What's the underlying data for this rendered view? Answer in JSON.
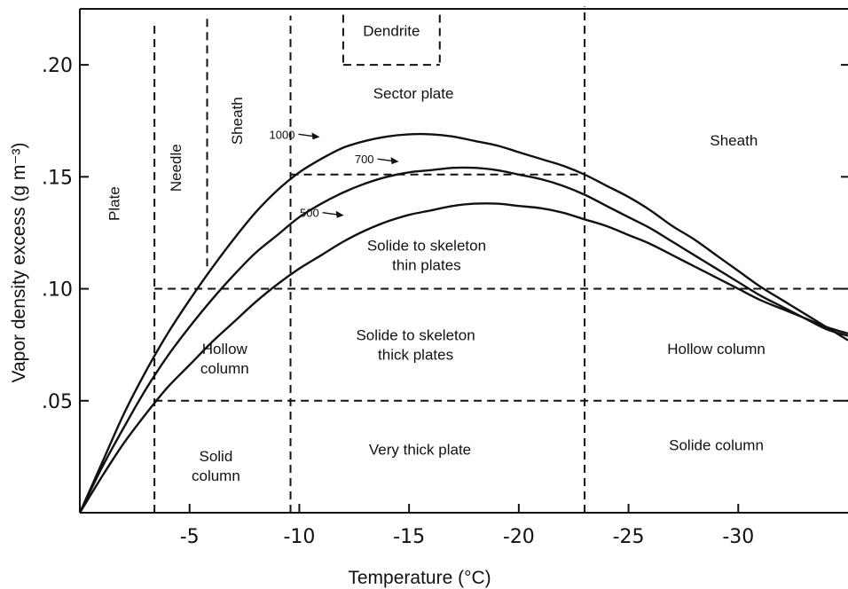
{
  "chart_data": {
    "type": "line",
    "title": "",
    "xlabel": "Temperature (°C)",
    "ylabel": "Vapor density excess (g m⁻³)",
    "xlim": [
      0,
      -35
    ],
    "ylim": [
      0,
      0.225
    ],
    "x_ticks": [
      {
        "value": -5,
        "label": "-5"
      },
      {
        "value": -10,
        "label": "-10"
      },
      {
        "value": -15,
        "label": "-15"
      },
      {
        "value": -20,
        "label": "-20"
      },
      {
        "value": -25,
        "label": "-25"
      },
      {
        "value": -30,
        "label": "-30"
      }
    ],
    "y_ticks": [
      {
        "value": 0.05,
        "label": ".05"
      },
      {
        "value": 0.1,
        "label": ".10"
      },
      {
        "value": 0.15,
        "label": ".15"
      },
      {
        "value": 0.2,
        "label": ".20"
      }
    ],
    "series": [
      {
        "name": "1000",
        "label_at": [
          -9.8,
          0.169
        ],
        "points": [
          [
            0,
            0
          ],
          [
            -1,
            0.022
          ],
          [
            -2,
            0.044
          ],
          [
            -3,
            0.063
          ],
          [
            -4,
            0.08
          ],
          [
            -5,
            0.095
          ],
          [
            -6,
            0.109
          ],
          [
            -7,
            0.122
          ],
          [
            -8,
            0.134
          ],
          [
            -9,
            0.144
          ],
          [
            -10,
            0.152
          ],
          [
            -11,
            0.158
          ],
          [
            -12,
            0.163
          ],
          [
            -13,
            0.166
          ],
          [
            -14,
            0.168
          ],
          [
            -15,
            0.169
          ],
          [
            -16,
            0.169
          ],
          [
            -17,
            0.168
          ],
          [
            -18,
            0.166
          ],
          [
            -19,
            0.164
          ],
          [
            -20,
            0.161
          ],
          [
            -21,
            0.158
          ],
          [
            -22,
            0.155
          ],
          [
            -23,
            0.151
          ],
          [
            -24,
            0.146
          ],
          [
            -25,
            0.141
          ],
          [
            -26,
            0.135
          ],
          [
            -27,
            0.128
          ],
          [
            -28,
            0.122
          ],
          [
            -29,
            0.115
          ],
          [
            -30,
            0.108
          ],
          [
            -31,
            0.101
          ],
          [
            -32,
            0.095
          ],
          [
            -33,
            0.089
          ],
          [
            -34,
            0.083
          ],
          [
            -35,
            0.077
          ]
        ]
      },
      {
        "name": "700",
        "label_at": [
          -13.4,
          0.158
        ],
        "points": [
          [
            0,
            0
          ],
          [
            -1,
            0.02
          ],
          [
            -2,
            0.038
          ],
          [
            -3,
            0.055
          ],
          [
            -4,
            0.07
          ],
          [
            -5,
            0.083
          ],
          [
            -6,
            0.095
          ],
          [
            -7,
            0.106
          ],
          [
            -8,
            0.116
          ],
          [
            -9,
            0.124
          ],
          [
            -10,
            0.132
          ],
          [
            -11,
            0.138
          ],
          [
            -12,
            0.143
          ],
          [
            -13,
            0.147
          ],
          [
            -14,
            0.15
          ],
          [
            -15,
            0.152
          ],
          [
            -16,
            0.153
          ],
          [
            -17,
            0.154
          ],
          [
            -18,
            0.154
          ],
          [
            -19,
            0.153
          ],
          [
            -20,
            0.151
          ],
          [
            -21,
            0.149
          ],
          [
            -22,
            0.146
          ],
          [
            -23,
            0.142
          ],
          [
            -24,
            0.137
          ],
          [
            -25,
            0.132
          ],
          [
            -26,
            0.127
          ],
          [
            -27,
            0.121
          ],
          [
            -28,
            0.115
          ],
          [
            -29,
            0.109
          ],
          [
            -30,
            0.103
          ],
          [
            -31,
            0.097
          ],
          [
            -32,
            0.092
          ],
          [
            -33,
            0.087
          ],
          [
            -34,
            0.082
          ],
          [
            -35,
            0.079
          ]
        ]
      },
      {
        "name": "500",
        "label_at": [
          -10.9,
          0.134
        ],
        "points": [
          [
            0,
            0
          ],
          [
            -1,
            0.016
          ],
          [
            -2,
            0.031
          ],
          [
            -3,
            0.044
          ],
          [
            -4,
            0.056
          ],
          [
            -5,
            0.066
          ],
          [
            -6,
            0.076
          ],
          [
            -7,
            0.085
          ],
          [
            -8,
            0.094
          ],
          [
            -9,
            0.102
          ],
          [
            -10,
            0.109
          ],
          [
            -11,
            0.115
          ],
          [
            -12,
            0.121
          ],
          [
            -13,
            0.126
          ],
          [
            -14,
            0.13
          ],
          [
            -15,
            0.133
          ],
          [
            -16,
            0.135
          ],
          [
            -17,
            0.137
          ],
          [
            -18,
            0.138
          ],
          [
            -19,
            0.138
          ],
          [
            -20,
            0.137
          ],
          [
            -21,
            0.136
          ],
          [
            -22,
            0.134
          ],
          [
            -23,
            0.131
          ],
          [
            -24,
            0.128
          ],
          [
            -25,
            0.124
          ],
          [
            -26,
            0.12
          ],
          [
            -27,
            0.115
          ],
          [
            -28,
            0.11
          ],
          [
            -29,
            0.105
          ],
          [
            -30,
            0.1
          ],
          [
            -31,
            0.095
          ],
          [
            -32,
            0.091
          ],
          [
            -33,
            0.087
          ],
          [
            -34,
            0.083
          ],
          [
            -35,
            0.08
          ]
        ]
      }
    ],
    "boundaries": {
      "vertical": [
        {
          "x": -3.4,
          "y_range": [
            0,
            0.219
          ]
        },
        {
          "x": -5.8,
          "y_range": [
            0.11,
            0.222
          ]
        },
        {
          "x": -9.6,
          "y_range": [
            0,
            0.222
          ]
        },
        {
          "x": -23,
          "y_range": [
            0,
            0.226
          ]
        },
        {
          "x": -12,
          "y_range": [
            0.201,
            0.225
          ]
        },
        {
          "x": -16.4,
          "y_range": [
            0.201,
            0.225
          ]
        }
      ],
      "horizontal": [
        {
          "y": 0.2,
          "x_range": [
            -12,
            -16.4
          ]
        },
        {
          "y": 0.151,
          "x_range": [
            -9.6,
            -23
          ]
        },
        {
          "y": 0.1,
          "x_range": [
            -3.4,
            -35
          ]
        },
        {
          "y": 0.05,
          "x_range": [
            -3.4,
            -35
          ]
        }
      ]
    },
    "regions": [
      {
        "text": [
          "Plate"
        ],
        "at": [
          -1.8,
          0.138
        ],
        "rotate": -90
      },
      {
        "text": [
          "Needle"
        ],
        "at": [
          -4.6,
          0.154
        ],
        "rotate": -90
      },
      {
        "text": [
          "Sheath"
        ],
        "at": [
          -7.4,
          0.175
        ],
        "rotate": -90
      },
      {
        "text": [
          "Dendrite"
        ],
        "at": [
          -14.2,
          0.213
        ],
        "rotate": 0
      },
      {
        "text": [
          "Sector plate"
        ],
        "at": [
          -15.2,
          0.185
        ],
        "rotate": 0
      },
      {
        "text": [
          "Sheath"
        ],
        "at": [
          -29.8,
          0.164
        ],
        "rotate": 0
      },
      {
        "text": [
          "Solide to skeleton",
          "thin plates"
        ],
        "at": [
          -15.8,
          0.117
        ],
        "rotate": 0
      },
      {
        "text": [
          "Hollow",
          "column"
        ],
        "at": [
          -6.6,
          0.071
        ],
        "rotate": 0
      },
      {
        "text": [
          "Solide to skeleton",
          "thick plates"
        ],
        "at": [
          -15.3,
          0.077
        ],
        "rotate": 0
      },
      {
        "text": [
          "Hollow column"
        ],
        "at": [
          -29,
          0.071
        ],
        "rotate": 0
      },
      {
        "text": [
          "Solid",
          "column"
        ],
        "at": [
          -6.2,
          0.023
        ],
        "rotate": 0
      },
      {
        "text": [
          "Very thick plate"
        ],
        "at": [
          -15.5,
          0.026
        ],
        "rotate": 0
      },
      {
        "text": [
          "Solide column"
        ],
        "at": [
          -29,
          0.028
        ],
        "rotate": 0
      }
    ],
    "grid": false,
    "legend": "none"
  }
}
